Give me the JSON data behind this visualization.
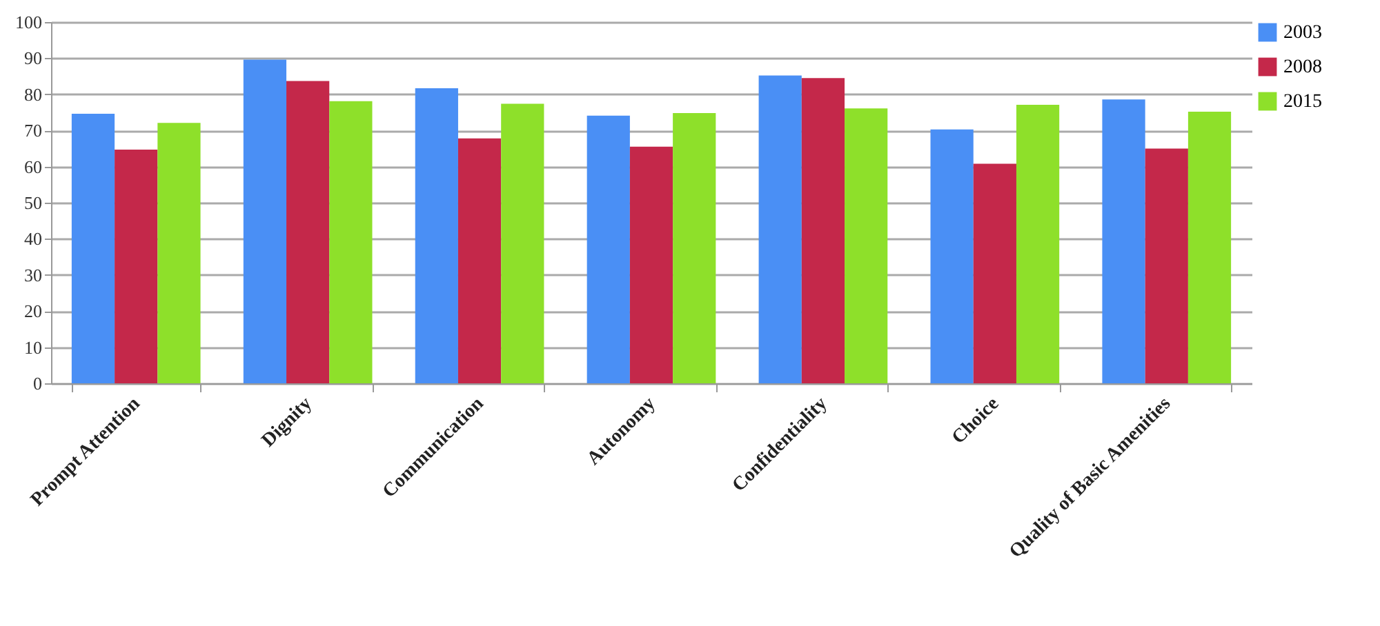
{
  "chart_data": {
    "type": "bar",
    "categories": [
      "Prompt Attention",
      "Dignity",
      "Communication",
      "Autonomy",
      "Confidentiality",
      "Choice",
      "Quality of Basic Amenities"
    ],
    "series": [
      {
        "name": "2003",
        "color": "#4a8ff5",
        "values": [
          74.6,
          89.6,
          81.7,
          74.1,
          85.2,
          70.3,
          78.6
        ]
      },
      {
        "name": "2008",
        "color": "#c4284a",
        "values": [
          64.7,
          83.7,
          67.8,
          65.5,
          84.5,
          60.8,
          65.0
        ]
      },
      {
        "name": "2015",
        "color": "#8ee02a",
        "values": [
          72.1,
          78.1,
          77.4,
          74.8,
          76.1,
          77.1,
          75.2
        ]
      }
    ],
    "ylim": [
      0,
      100
    ],
    "yticks": [
      0,
      10,
      20,
      30,
      40,
      50,
      60,
      70,
      80,
      90,
      100
    ],
    "grid": "y",
    "legend": "top right"
  }
}
